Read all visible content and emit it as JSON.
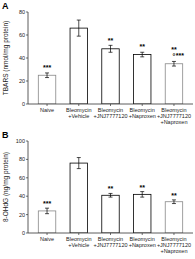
{
  "chart_data": [
    {
      "type": "bar",
      "title": "A",
      "y_label": "TBARS (nmol/mg protein)",
      "categories": [
        "Naive",
        "Bleomycin\n+Vehicle",
        "Bleomycin\n+JNJ7777120",
        "Bleomycin\n+Naproxen",
        "Bleomycin\n+JNJ7777120\n+Naproxen"
      ],
      "values": [
        25,
        66,
        48,
        43,
        35
      ],
      "errors": [
        2,
        7,
        3,
        2,
        2
      ],
      "colors": [
        "#888888",
        "black",
        "black",
        "black",
        "#888888"
      ],
      "ylim": [
        0,
        80
      ],
      "yticks": [
        0,
        20,
        40,
        60,
        80
      ],
      "grid": false,
      "annotations": [
        {
          "text": "***",
          "x": 0,
          "y": 29
        },
        {
          "text": "**",
          "x": 2,
          "y": 52
        },
        {
          "text": "**",
          "x": 3,
          "y": 47
        },
        {
          "text": "°",
          "x": 4,
          "y": 38
        },
        {
          "text": "**",
          "x": 4,
          "y": 44
        },
        {
          "text": "***",
          "x": 4,
          "y": 39
        }
      ]
    },
    {
      "type": "bar",
      "title": "B",
      "y_label": "8-OHdG (ng/mg protein)",
      "categories": [
        "Naive",
        "Bleomycin\n+Vehicle",
        "Bleomycin\n+JNJ7777120",
        "Bleomycin\n+Naproxen",
        "Bleomycin\n+JNJ7777120\n+Naproxen"
      ],
      "values": [
        24,
        76,
        41,
        42,
        34
      ],
      "errors": [
        3,
        6,
        2,
        3,
        2
      ],
      "colors": [
        "#888888",
        "black",
        "black",
        "black",
        "#888888"
      ],
      "ylim": [
        0,
        100
      ],
      "yticks": [
        0,
        20,
        40,
        60,
        80,
        100
      ],
      "grid": false,
      "annotations": [
        {
          "text": "***",
          "x": 0,
          "y": 28
        },
        {
          "text": "**",
          "x": 2,
          "y": 45
        },
        {
          "text": "**",
          "x": 3,
          "y": 46
        },
        {
          "text": "**",
          "x": 4,
          "y": 37
        }
      ]
    }
  ]
}
